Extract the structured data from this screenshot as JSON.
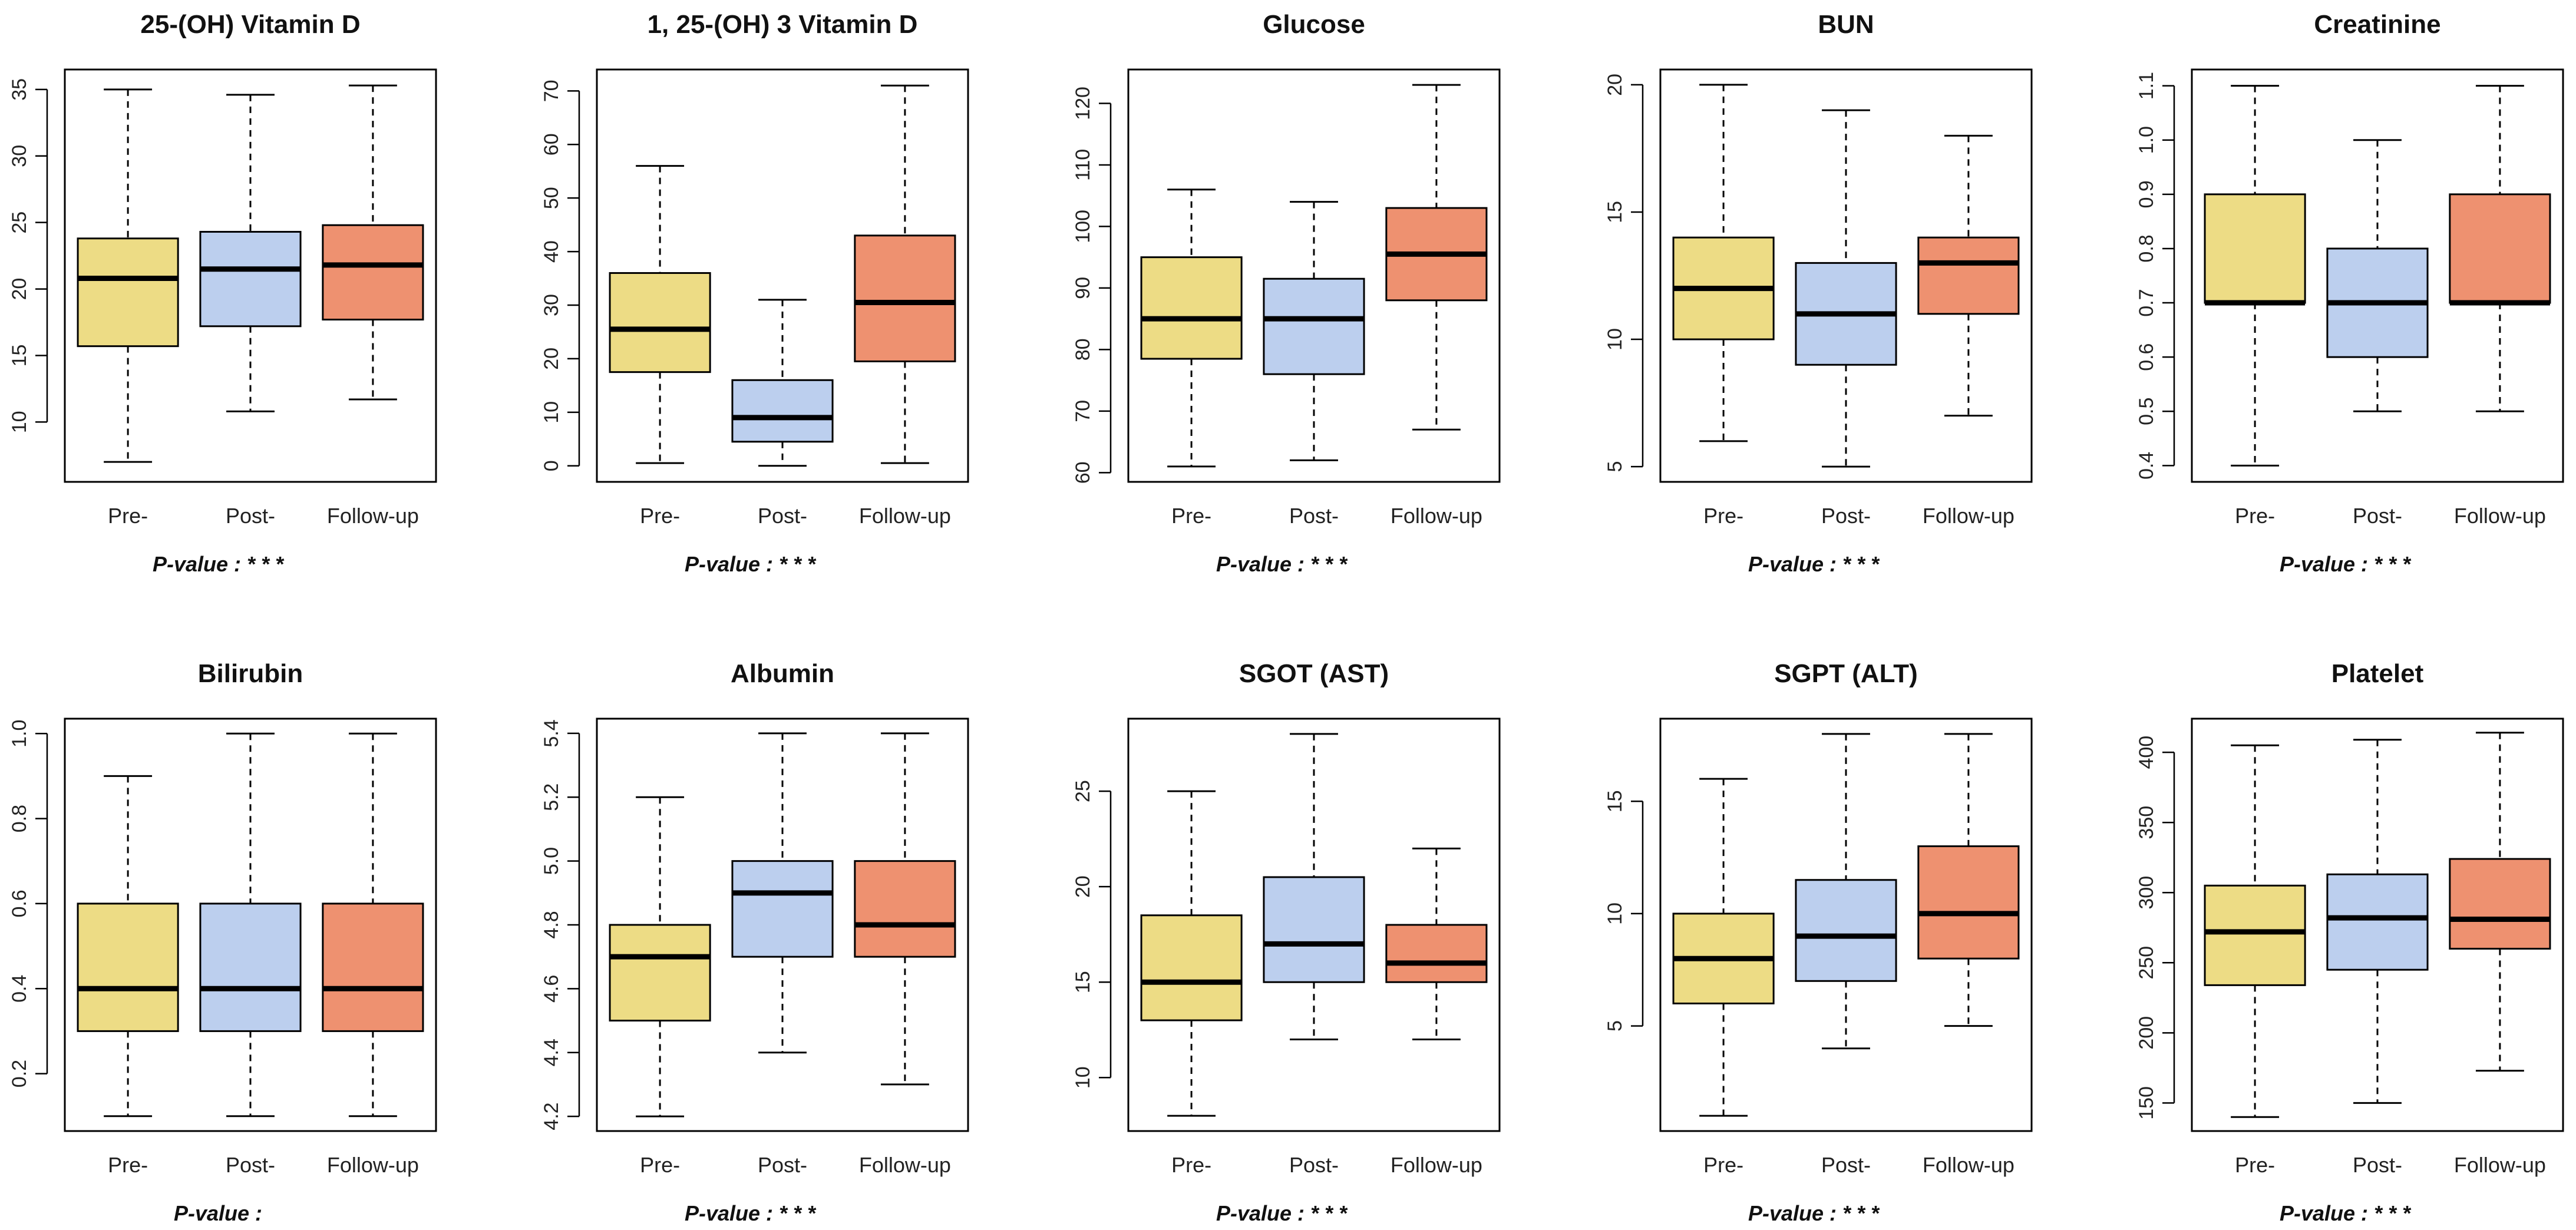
{
  "colors": {
    "pre": "#EDDC85",
    "post": "#BCCFEE",
    "followup": "#EE9170"
  },
  "chart_data": [
    {
      "type": "box",
      "title": "25-(OH) Vitamin D",
      "categories": [
        "Pre-",
        "Post-",
        "Follow-up"
      ],
      "p_value": "P-value : * * *",
      "ylim": [
        5.5,
        36.5
      ],
      "yticks": [
        10,
        15,
        20,
        25,
        30,
        35
      ],
      "boxes": [
        {
          "min": 7,
          "q1": 15.7,
          "median": 20.8,
          "q3": 23.8,
          "max": 35
        },
        {
          "min": 10.8,
          "q1": 17.2,
          "median": 21.5,
          "q3": 24.3,
          "max": 34.6
        },
        {
          "min": 11.7,
          "q1": 17.7,
          "median": 21.8,
          "q3": 24.8,
          "max": 35.3
        }
      ]
    },
    {
      "type": "box",
      "title": "1, 25-(OH) 3 Vitamin D",
      "categories": [
        "Pre-",
        "Post-",
        "Follow-up"
      ],
      "p_value": "P-value : * * *",
      "ylim": [
        -3,
        74
      ],
      "yticks": [
        0,
        10,
        20,
        30,
        40,
        50,
        60,
        70
      ],
      "boxes": [
        {
          "min": 0.5,
          "q1": 17.5,
          "median": 25.5,
          "q3": 36,
          "max": 56
        },
        {
          "min": 0,
          "q1": 4.5,
          "median": 9,
          "q3": 16,
          "max": 31
        },
        {
          "min": 0.5,
          "q1": 19.5,
          "median": 30.5,
          "q3": 43,
          "max": 71
        }
      ]
    },
    {
      "type": "box",
      "title": "Glucose",
      "categories": [
        "Pre-",
        "Post-",
        "Follow-up"
      ],
      "p_value": "P-value : * * *",
      "ylim": [
        58.5,
        125.5
      ],
      "yticks": [
        60,
        70,
        80,
        90,
        100,
        110,
        120
      ],
      "boxes": [
        {
          "min": 61,
          "q1": 78.5,
          "median": 85,
          "q3": 95,
          "max": 106
        },
        {
          "min": 62,
          "q1": 76,
          "median": 85,
          "q3": 91.5,
          "max": 104
        },
        {
          "min": 67,
          "q1": 88,
          "median": 95.5,
          "q3": 103,
          "max": 123
        }
      ]
    },
    {
      "type": "box",
      "title": "BUN",
      "categories": [
        "Pre-",
        "Post-",
        "Follow-up"
      ],
      "p_value": "P-value : * * *",
      "ylim": [
        4.4,
        20.6
      ],
      "yticks": [
        5,
        10,
        15,
        20
      ],
      "boxes": [
        {
          "min": 6,
          "q1": 10,
          "median": 12,
          "q3": 14,
          "max": 20
        },
        {
          "min": 5,
          "q1": 9,
          "median": 11,
          "q3": 13,
          "max": 19
        },
        {
          "min": 7,
          "q1": 11,
          "median": 13,
          "q3": 14,
          "max": 18
        }
      ]
    },
    {
      "type": "box",
      "title": "Creatinine",
      "categories": [
        "Pre-",
        "Post-",
        "Follow-up"
      ],
      "p_value": "P-value : * * *",
      "ylim": [
        0.37,
        1.13
      ],
      "yticks": [
        0.4,
        0.5,
        0.6,
        0.7,
        0.8,
        0.9,
        1.0,
        1.1
      ],
      "boxes": [
        {
          "min": 0.4,
          "q1": 0.7,
          "median": 0.7,
          "q3": 0.9,
          "max": 1.1
        },
        {
          "min": 0.5,
          "q1": 0.6,
          "median": 0.7,
          "q3": 0.8,
          "max": 1.0
        },
        {
          "min": 0.5,
          "q1": 0.7,
          "median": 0.7,
          "q3": 0.9,
          "max": 1.1
        }
      ]
    },
    {
      "type": "box",
      "title": "Bilirubin",
      "categories": [
        "Pre-",
        "Post-",
        "Follow-up"
      ],
      "p_value": "P-value :",
      "ylim": [
        0.065,
        1.035
      ],
      "yticks": [
        0.2,
        0.4,
        0.6,
        0.8,
        1.0
      ],
      "boxes": [
        {
          "min": 0.1,
          "q1": 0.3,
          "median": 0.4,
          "q3": 0.6,
          "max": 0.9
        },
        {
          "min": 0.1,
          "q1": 0.3,
          "median": 0.4,
          "q3": 0.6,
          "max": 1.0
        },
        {
          "min": 0.1,
          "q1": 0.3,
          "median": 0.4,
          "q3": 0.6,
          "max": 1.0
        }
      ]
    },
    {
      "type": "box",
      "title": "Albumin",
      "categories": [
        "Pre-",
        "Post-",
        "Follow-up"
      ],
      "p_value": "P-value : * * *",
      "ylim": [
        4.154,
        5.446
      ],
      "yticks": [
        4.2,
        4.4,
        4.6,
        4.8,
        5.0,
        5.2,
        5.4
      ],
      "boxes": [
        {
          "min": 4.2,
          "q1": 4.5,
          "median": 4.7,
          "q3": 4.8,
          "max": 5.2
        },
        {
          "min": 4.4,
          "q1": 4.7,
          "median": 4.9,
          "q3": 5.0,
          "max": 5.4
        },
        {
          "min": 4.3,
          "q1": 4.7,
          "median": 4.8,
          "q3": 5.0,
          "max": 5.4
        }
      ]
    },
    {
      "type": "box",
      "title": "SGOT (AST)",
      "categories": [
        "Pre-",
        "Post-",
        "Follow-up"
      ],
      "p_value": "P-value : * * *",
      "ylim": [
        7.2,
        28.8
      ],
      "yticks": [
        10,
        15,
        20,
        25
      ],
      "boxes": [
        {
          "min": 8,
          "q1": 13,
          "median": 15,
          "q3": 18.5,
          "max": 25
        },
        {
          "min": 12,
          "q1": 15,
          "median": 17,
          "q3": 20.5,
          "max": 28
        },
        {
          "min": 12,
          "q1": 15,
          "median": 16,
          "q3": 18,
          "max": 22
        }
      ]
    },
    {
      "type": "box",
      "title": "SGPT (ALT)",
      "categories": [
        "Pre-",
        "Post-",
        "Follow-up"
      ],
      "p_value": "P-value : * * *",
      "ylim": [
        0.32,
        18.68
      ],
      "yticks": [
        5,
        10,
        15
      ],
      "boxes": [
        {
          "min": 1,
          "q1": 6,
          "median": 8,
          "q3": 10,
          "max": 16
        },
        {
          "min": 4,
          "q1": 7,
          "median": 9,
          "q3": 11.5,
          "max": 18
        },
        {
          "min": 5,
          "q1": 8,
          "median": 10,
          "q3": 13,
          "max": 18
        }
      ]
    },
    {
      "type": "box",
      "title": "Platelet",
      "categories": [
        "Pre-",
        "Post-",
        "Follow-up"
      ],
      "p_value": "P-value : * * *",
      "ylim": [
        130,
        424
      ],
      "yticks": [
        150,
        200,
        250,
        300,
        350,
        400
      ],
      "boxes": [
        {
          "min": 140,
          "q1": 234,
          "median": 272,
          "q3": 305,
          "max": 405
        },
        {
          "min": 150,
          "q1": 245,
          "median": 282,
          "q3": 313,
          "max": 409
        },
        {
          "min": 173,
          "q1": 260,
          "median": 281,
          "q3": 324,
          "max": 414
        }
      ]
    }
  ]
}
